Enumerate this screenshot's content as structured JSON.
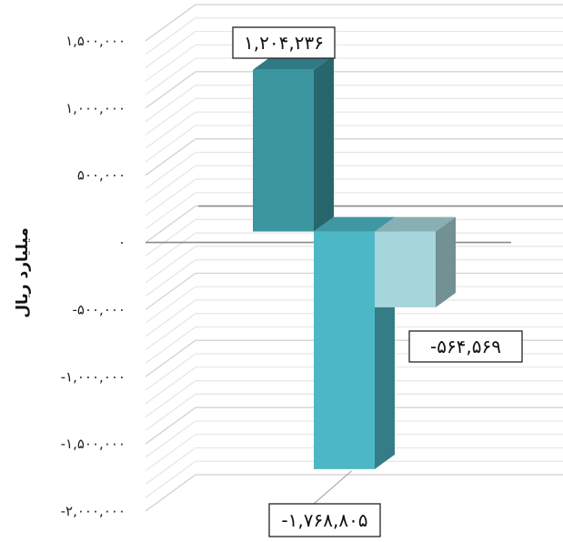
{
  "chart_data": {
    "type": "bar",
    "style": "3d-column",
    "ylabel": "میلیارد ریال",
    "ylim": [
      -2000000,
      1500000
    ],
    "yticks": [
      {
        "value": 1500000,
        "label": "۱,۵۰۰,۰۰۰"
      },
      {
        "value": 1000000,
        "label": "۱,۰۰۰,۰۰۰"
      },
      {
        "value": 500000,
        "label": "۵۰۰,۰۰۰"
      },
      {
        "value": 0,
        "label": "۰"
      },
      {
        "value": -500000,
        "label": "-۵۰۰,۰۰۰"
      },
      {
        "value": -1000000,
        "label": "-۱,۰۰۰,۰۰۰"
      },
      {
        "value": -1500000,
        "label": "-۱,۵۰۰,۰۰۰"
      },
      {
        "value": -2000000,
        "label": "-۲,۰۰۰,۰۰۰"
      }
    ],
    "grid": true,
    "series": [
      {
        "values": [
          1204236
        ],
        "label": "۱,۲۰۴,۲۳۶",
        "color": "#3b96a0"
      },
      {
        "values": [
          -1768805
        ],
        "label": "-۱,۷۶۸,۸۰۵",
        "color": "#4cb8c6"
      },
      {
        "values": [
          -564569
        ],
        "label": "-۵۶۴,۵۶۹",
        "color": "#a6d5db"
      }
    ]
  }
}
